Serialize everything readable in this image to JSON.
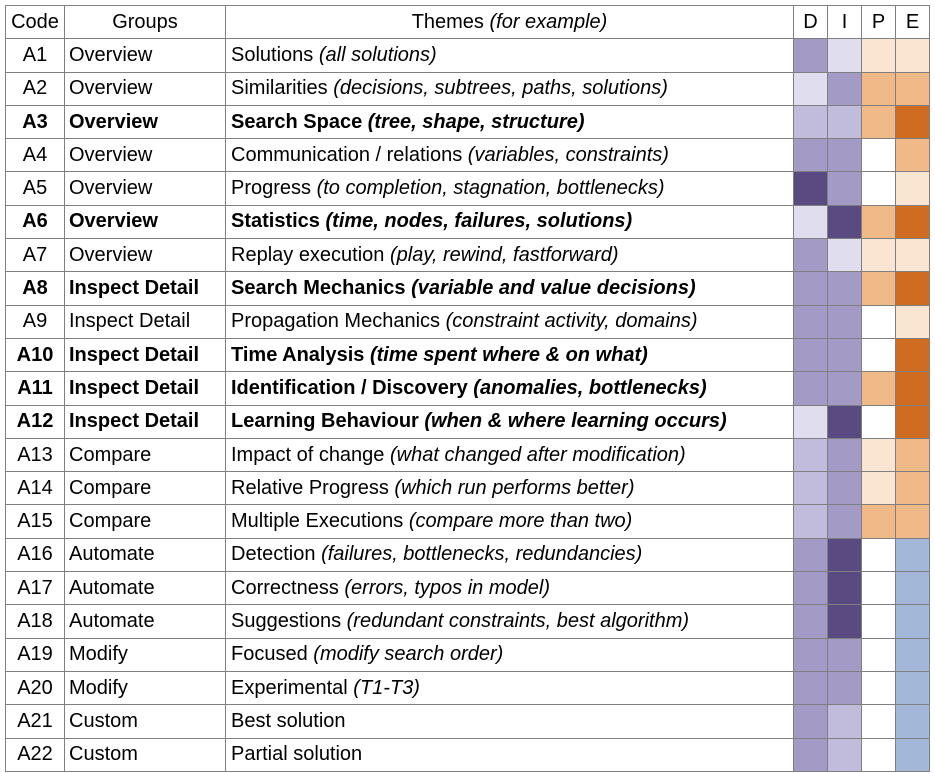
{
  "header": {
    "code": "Code",
    "groups": "Groups",
    "themes": "Themes",
    "themes_note": "(for example)",
    "ratings": [
      "D",
      "I",
      "P",
      "E"
    ]
  },
  "rows": [
    {
      "code": "A1",
      "group": "Overview",
      "theme": "Solutions",
      "note": "(all solutions)",
      "bold": false
    },
    {
      "code": "A2",
      "group": "Overview",
      "theme": "Similarities",
      "note": "(decisions, subtrees, paths, solutions)",
      "bold": false
    },
    {
      "code": "A3",
      "group": "Overview",
      "theme": "Search Space",
      "note": "(tree, shape, structure)",
      "bold": true
    },
    {
      "code": "A4",
      "group": "Overview",
      "theme": "Communication / relations",
      "note": "(variables, constraints)",
      "bold": false
    },
    {
      "code": "A5",
      "group": "Overview",
      "theme": "Progress",
      "note": "(to completion, stagnation, bottlenecks)",
      "bold": false
    },
    {
      "code": "A6",
      "group": "Overview",
      "theme": "Statistics",
      "note": "(time, nodes, failures, solutions)",
      "bold": true
    },
    {
      "code": "A7",
      "group": "Overview",
      "theme": "Replay execution",
      "note": "(play, rewind, fastforward)",
      "bold": false
    },
    {
      "code": "A8",
      "group": "Inspect Detail",
      "theme": "Search Mechanics",
      "note": "(variable and value decisions)",
      "bold": true
    },
    {
      "code": "A9",
      "group": "Inspect Detail",
      "theme": "Propagation Mechanics",
      "note": "(constraint activity, domains)",
      "bold": false
    },
    {
      "code": "A10",
      "group": "Inspect Detail",
      "theme": "Time Analysis",
      "note": "(time spent where & on what)",
      "bold": true
    },
    {
      "code": "A11",
      "group": "Inspect Detail",
      "theme": "Identification / Discovery",
      "note": "(anomalies, bottlenecks)",
      "bold": true
    },
    {
      "code": "A12",
      "group": "Inspect Detail",
      "theme": "Learning Behaviour",
      "note": "(when & where learning occurs)",
      "bold": true
    },
    {
      "code": "A13",
      "group": "Compare",
      "theme": "Impact of change",
      "note": "(what changed after modification)",
      "bold": false
    },
    {
      "code": "A14",
      "group": "Compare",
      "theme": "Relative Progress",
      "note": "(which run performs better)",
      "bold": false
    },
    {
      "code": "A15",
      "group": "Compare",
      "theme": "Multiple Executions",
      "note": "(compare more than two)",
      "bold": false
    },
    {
      "code": "A16",
      "group": "Automate",
      "theme": "Detection",
      "note": "(failures, bottlenecks, redundancies)",
      "bold": false
    },
    {
      "code": "A17",
      "group": "Automate",
      "theme": "Correctness",
      "note": "(errors, typos in model)",
      "bold": false
    },
    {
      "code": "A18",
      "group": "Automate",
      "theme": "Suggestions",
      "note": "(redundant constraints, best algorithm)",
      "bold": false
    },
    {
      "code": "A19",
      "group": "Modify",
      "theme": "Focused",
      "note": "(modify search order)",
      "bold": false
    },
    {
      "code": "A20",
      "group": "Modify",
      "theme": "Experimental",
      "note": "(T1-T3)",
      "bold": false
    },
    {
      "code": "A21",
      "group": "Custom",
      "theme": "Best solution",
      "note": "",
      "bold": false
    },
    {
      "code": "A22",
      "group": "Custom",
      "theme": "Partial solution",
      "note": "",
      "bold": false
    }
  ],
  "ratings": [
    [
      "#a49ac6",
      "#e0ddee",
      "#fae4d2",
      "#fae4d2"
    ],
    [
      "#e0ddee",
      "#a49ac6",
      "#f0ba88",
      "#f0ba88"
    ],
    [
      "#c2bcdc",
      "#c2bcdc",
      "#f0ba88",
      "#cf6c22"
    ],
    [
      "#a49ac6",
      "#a49ac6",
      "#ffffff",
      "#f0ba88"
    ],
    [
      "#5a4a82",
      "#a49ac6",
      "#ffffff",
      "#fae4d2"
    ],
    [
      "#e0ddee",
      "#5a4a82",
      "#f0ba88",
      "#cf6c22"
    ],
    [
      "#a49ac6",
      "#e0ddee",
      "#fae4d2",
      "#fae4d2"
    ],
    [
      "#a49ac6",
      "#a49ac6",
      "#f0ba88",
      "#cf6c22"
    ],
    [
      "#a49ac6",
      "#a49ac6",
      "#ffffff",
      "#fae4d2"
    ],
    [
      "#a49ac6",
      "#a49ac6",
      "#ffffff",
      "#cf6c22"
    ],
    [
      "#a49ac6",
      "#a49ac6",
      "#f0ba88",
      "#cf6c22"
    ],
    [
      "#e0ddee",
      "#5a4a82",
      "#ffffff",
      "#cf6c22"
    ],
    [
      "#c2bcdc",
      "#a49ac6",
      "#fae4d2",
      "#f0ba88"
    ],
    [
      "#c2bcdc",
      "#a49ac6",
      "#fae4d2",
      "#f0ba88"
    ],
    [
      "#c2bcdc",
      "#a49ac6",
      "#f0ba88",
      "#f0ba88"
    ],
    [
      "#a49ac6",
      "#5a4a82",
      "#ffffff",
      "#a3b7d9"
    ],
    [
      "#a49ac6",
      "#5a4a82",
      "#ffffff",
      "#a3b7d9"
    ],
    [
      "#a49ac6",
      "#5a4a82",
      "#ffffff",
      "#a3b7d9"
    ],
    [
      "#a49ac6",
      "#a49ac6",
      "#ffffff",
      "#a3b7d9"
    ],
    [
      "#a49ac6",
      "#a49ac6",
      "#ffffff",
      "#a3b7d9"
    ],
    [
      "#a49ac6",
      "#c2bcdc",
      "#ffffff",
      "#a3b7d9"
    ],
    [
      "#a49ac6",
      "#c2bcdc",
      "#ffffff",
      "#a3b7d9"
    ]
  ]
}
